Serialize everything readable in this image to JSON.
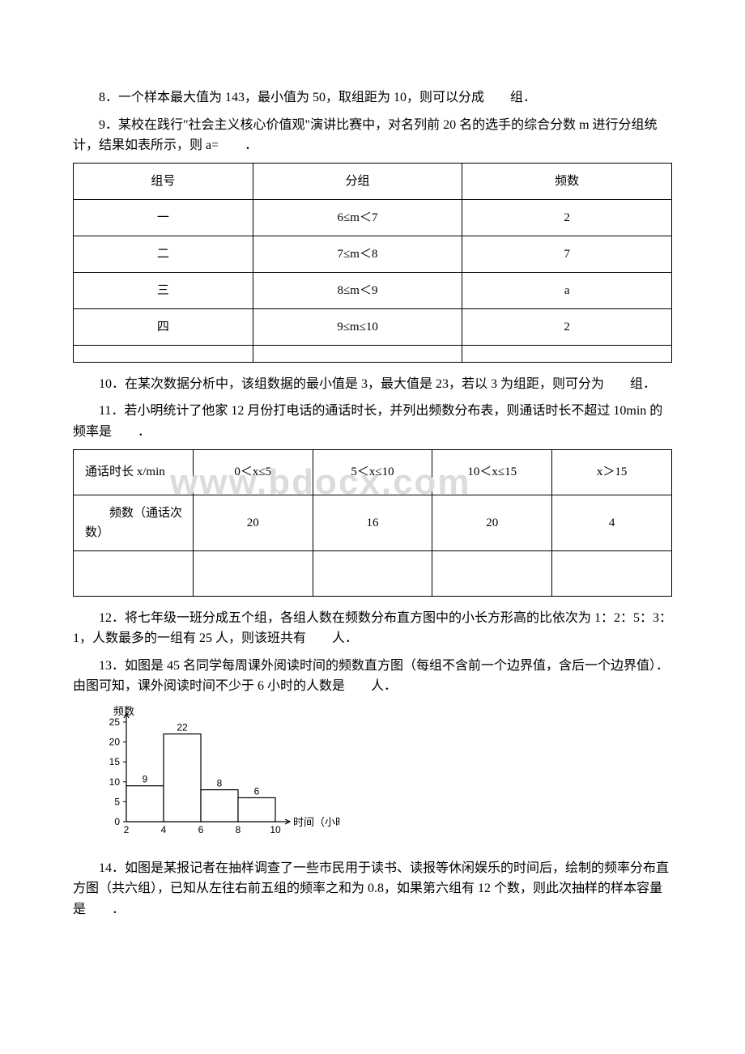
{
  "q8": "8．一个样本最大值为 143，最小值为 50，取组距为 10，则可以分成　　组．",
  "q9": "9．某校在践行\"社会主义核心价值观\"演讲比赛中，对名列前 20 名的选手的综合分数 m 进行分组统计，结果如表所示，则 a=　　．",
  "q10": "10．在某次数据分析中，该组数据的最小值是 3，最大值是 23，若以 3 为组距，则可分为　　组．",
  "q11": "11．若小明统计了他家 12 月份打电话的通话时长，并列出频数分布表，则通话时长不超过 10min 的频率是　　．",
  "q12": "12．将七年级一班分成五个组，各组人数在频数分布直方图中的小长方形高的比依次为 1：2：5：3：1，人数最多的一组有 25 人，则该班共有　　人．",
  "q13": "13．如图是 45 名同学每周课外阅读时间的频数直方图（每组不含前一个边界值，含后一个边界值）．由图可知，课外阅读时间不少于 6 小时的人数是　　人．",
  "q14": "14．如图是某报记者在抽样调查了一些市民用于读书、读报等休闲娱乐的时间后，绘制的频率分布直方图（共六组），已知从左往右前五组的频率之和为 0.8，如果第六组有 12 个数，则此次抽样的样本容量是　　．",
  "table1": {
    "header": [
      "组号",
      "分组",
      "频数"
    ],
    "rows": [
      [
        "一",
        "6≤m＜7",
        "2"
      ],
      [
        "二",
        "7≤m＜8",
        "7"
      ],
      [
        "三",
        "8≤m＜9",
        "a"
      ],
      [
        "四",
        "9≤m≤10",
        "2"
      ],
      [
        "",
        "",
        ""
      ]
    ]
  },
  "table2": {
    "row1": [
      "通话时长 x/min",
      "0＜x≤5",
      "5＜x≤10",
      "10＜x≤15",
      "x＞15"
    ],
    "row2": [
      "　　频数（通话次数）",
      "20",
      "16",
      "20",
      "4"
    ],
    "row3": [
      "",
      "",
      "",
      "",
      ""
    ]
  },
  "watermark": "www.bdocx.com",
  "chart13": {
    "ylabel": "频数",
    "xlabel": "时间（小时）",
    "yticks": [
      0,
      5,
      10,
      15,
      20,
      25
    ],
    "xticks": [
      2,
      4,
      6,
      8,
      10
    ],
    "bars": [
      {
        "x0": 2,
        "x1": 4,
        "value": 9,
        "label": "9"
      },
      {
        "x0": 4,
        "x1": 6,
        "value": 22,
        "label": "22"
      },
      {
        "x0": 6,
        "x1": 8,
        "value": 8,
        "label": "8"
      },
      {
        "x0": 8,
        "x1": 10,
        "value": 6,
        "label": "6"
      }
    ],
    "bar_fill": "#ffffff",
    "bar_stroke": "#000000",
    "axis_color": "#000000",
    "ymax": 26
  }
}
